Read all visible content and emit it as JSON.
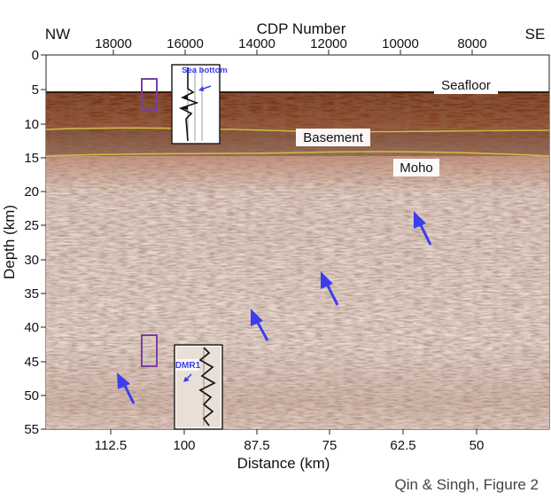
{
  "figure": {
    "caption": "Qin & Singh, Figure 2",
    "top_axis": {
      "title": "CDP Number",
      "ticks": [
        "18000",
        "16000",
        "14000",
        "12000",
        "10000",
        "8000"
      ],
      "left_end_label": "NW",
      "right_end_label": "SE"
    },
    "left_axis": {
      "title": "Depth (km)",
      "ticks": [
        "0",
        "5",
        "10",
        "15",
        "20",
        "25",
        "30",
        "35",
        "40",
        "45",
        "50",
        "55"
      ]
    },
    "bottom_axis": {
      "title": "Distance (km)",
      "ticks": [
        "112.5",
        "100",
        "87.5",
        "75",
        "62.5",
        "50"
      ]
    },
    "labels": {
      "seafloor": "Seafloor",
      "basement": "Basement",
      "moho": "Moho",
      "sea_bottom_inset": "Sea bottom",
      "dmr1_inset": "DMR1"
    },
    "colors": {
      "arrow": "#3d3df0",
      "box": "#7a3fa0",
      "horizon": "#d8c840",
      "crust": "#7a3a1a",
      "mantle": "#e9ddd6"
    }
  }
}
